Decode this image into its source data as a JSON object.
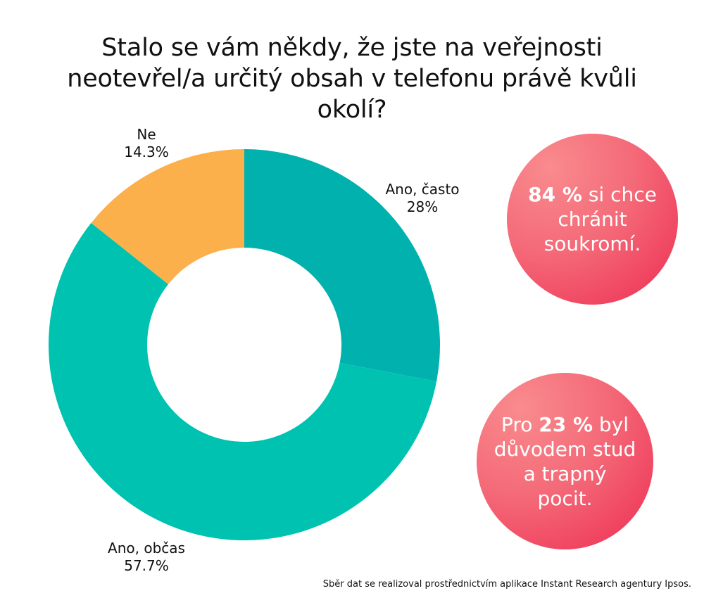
{
  "title": "Stalo se vám někdy, že jste na veřejnosti neotevřel/a určitý obsah v telefonu právě kvůli okolí?",
  "chart_data": {
    "type": "pie",
    "style": "donut",
    "categories": [
      "Ano, často",
      "Ano, občas",
      "Ne"
    ],
    "values": [
      28,
      57.7,
      14.3
    ],
    "value_labels": [
      "28%",
      "57.7%",
      "14.3%"
    ],
    "colors": [
      "#00b1ad",
      "#00c2b0",
      "#fbb04c"
    ]
  },
  "callouts": [
    {
      "highlight": "84 %",
      "text": " si chce chránit soukromí."
    },
    {
      "prefix": "Pro ",
      "highlight": "23 %",
      "suffix": " byl důvodem stud a trapný pocit."
    }
  ],
  "footer": "Sběr dat se realizoval prostřednictvím aplikace Instant Research agentury Ipsos."
}
